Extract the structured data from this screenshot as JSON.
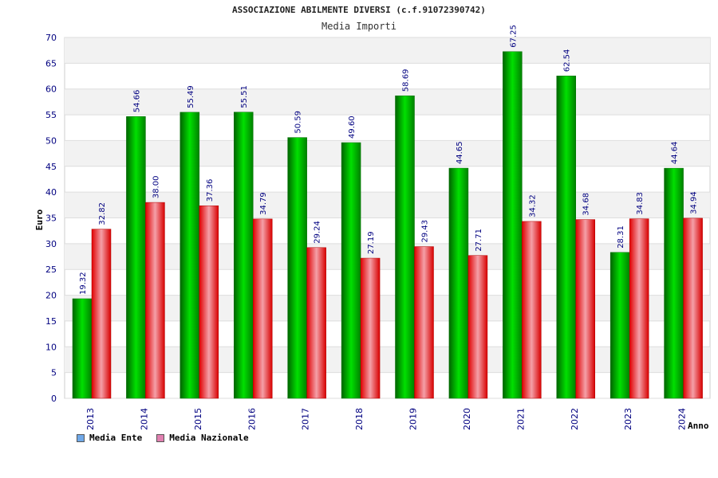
{
  "title": "ASSOCIAZIONE ABILMENTE DIVERSI (c.f.91072390742)",
  "subtitle": "Media Importi",
  "colors": {
    "ente": "#00b000",
    "nazionale": "#e00000",
    "legend_ente": "#6fa8e8",
    "legend_nazionale": "#e080b0",
    "band": "#f2f2f2",
    "text": "#000080"
  },
  "chart_data": {
    "type": "bar",
    "title": "ASSOCIAZIONE ABILMENTE DIVERSI (c.f.91072390742)",
    "subtitle": "Media Importi",
    "xlabel": "Anno",
    "ylabel": "Euro",
    "ylim": [
      0,
      70
    ],
    "yticks": [
      0,
      5,
      10,
      15,
      20,
      25,
      30,
      35,
      40,
      45,
      50,
      55,
      60,
      65,
      70
    ],
    "categories": [
      "2013",
      "2014",
      "2015",
      "2016",
      "2017",
      "2018",
      "2019",
      "2020",
      "2021",
      "2022",
      "2023",
      "2024"
    ],
    "series": [
      {
        "name": "Media Ente",
        "values": [
          19.32,
          54.66,
          55.49,
          55.51,
          50.59,
          49.6,
          58.69,
          44.65,
          67.25,
          62.54,
          28.31,
          44.64
        ],
        "labels": [
          "19.32",
          "54.66",
          "55.49",
          "55.51",
          "50.59",
          "49.60",
          "58.69",
          "44.65",
          "67.25",
          "62.54",
          "28.31",
          "44.64"
        ]
      },
      {
        "name": "Media Nazionale",
        "values": [
          32.82,
          38.0,
          37.36,
          34.79,
          29.24,
          27.19,
          29.43,
          27.71,
          34.32,
          34.68,
          34.83,
          34.94
        ],
        "labels": [
          "32.82",
          "38.00",
          "37.36",
          "34.79",
          "29.24",
          "27.19",
          "29.43",
          "27.71",
          "34.32",
          "34.68",
          "34.83",
          "34.94"
        ]
      }
    ],
    "grid": true,
    "legend": "bottom-left"
  }
}
